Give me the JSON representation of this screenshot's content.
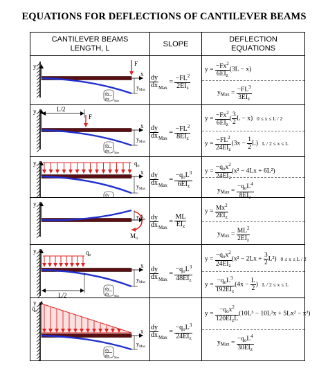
{
  "title": "EQUATIONS FOR DEFLECTIONS OF CANTILEVER BEAMS",
  "headers": {
    "col1_line1": "CANTILEVER BEAMS",
    "col1_line2": "LENGTH, L",
    "col2": "SLOPE",
    "col3_line1": "DEFLECTION",
    "col3_line2": "EQUATIONS"
  },
  "colors": {
    "beam": "#5a0f12",
    "load": "#e02020",
    "deflected": "#1f2fd0"
  },
  "labels": {
    "y": "y",
    "x": "x",
    "F": "F",
    "L2": "L/2",
    "qo": "q",
    "qo_sub": "o",
    "Mo": "M",
    "Mo_sub": "o",
    "ymax": "y",
    "ymax_sub": "Max",
    "dy": "dy",
    "dx": "dx",
    "max_sub": "Max"
  },
  "rows": [
    {
      "slope": {
        "num": "−FL",
        "num_sup": "2",
        "den": "2EI",
        "den_sub": "z"
      },
      "eq1": {
        "lhs": "y =",
        "num": "−Fx",
        "num_sup": "2",
        "den": "6EI",
        "den_sub": "z",
        "rest": "(3L − x)"
      },
      "eq2": {
        "lhs": "y",
        "lhs_sub": "Max",
        "eq": " =",
        "num": "−FL",
        "num_sup": "3",
        "den": "3EI",
        "den_sub": "z"
      }
    },
    {
      "slope": {
        "num": "−FL",
        "num_sup": "2",
        "den": "8EI",
        "den_sub": "z"
      },
      "eq1": {
        "lhs": "y =",
        "num": "−Fx",
        "num_sup": "2",
        "den": "6EI",
        "den_sub": "z",
        "rest_a": "(",
        "inner_num": "3",
        "inner_den": "2",
        "rest_b": "L − x)",
        "cond": "0 ≤ x ≤ L / 2"
      },
      "eq2": {
        "lhs": "y =",
        "num": "−FL",
        "num_sup": "2",
        "den": "24EI",
        "den_sub": "z",
        "rest_a": "(3x − ",
        "inner_num": "1",
        "inner_den": "2",
        "rest_b": "L)",
        "cond": "L / 2 ≤ x ≤ L"
      }
    },
    {
      "slope": {
        "num": "−q",
        "num_sub": "o",
        "num_tail": "L",
        "num_sup": "3",
        "den": "6EI",
        "den_sub": "z"
      },
      "eq1": {
        "lhs": "y =",
        "num": "−q",
        "num_sub": "o",
        "num_tail": "x",
        "num_sup": "2",
        "den": "24EI",
        "den_sub": "z",
        "rest": "(x² − 4Lx + 6L²)"
      },
      "eq2": {
        "lhs": "y",
        "lhs_sub": "Max",
        "eq": " =",
        "num": "−q",
        "num_sub": "o",
        "num_tail": "L",
        "num_sup": "4",
        "den": "8EI",
        "den_sub": "z"
      }
    },
    {
      "slope": {
        "num": "ML",
        "den": "EI",
        "den_sub": "z"
      },
      "eq1": {
        "lhs": "y =",
        "num": "Mx",
        "num_sup": "2",
        "den": "2EI",
        "den_sub": "z"
      },
      "eq2": {
        "lhs": "y",
        "lhs_sub": "Max",
        "eq": " =",
        "num": "ML",
        "num_sup": "2",
        "den": "2EI",
        "den_sub": "z"
      }
    },
    {
      "slope": {
        "num": "−q",
        "num_sub": "o",
        "num_tail": "L",
        "num_sup": "3",
        "den": "48EI",
        "den_sub": "z"
      },
      "eq1": {
        "lhs": "y =",
        "num": "−q",
        "num_sub": "o",
        "num_tail": "x",
        "num_sup": "2",
        "den": "24EI",
        "den_sub": "z",
        "rest": "(x² − 2Lx + ",
        "inner_num": "3",
        "inner_den": "2",
        "rest_b": "L²)",
        "cond": "0 ≤ x ≤ L / 2"
      },
      "eq2": {
        "lhs": "y =",
        "num": "−q",
        "num_sub": "o",
        "num_tail": "L",
        "num_sup": "3",
        "den": "192EI",
        "den_sub": "z",
        "rest_a": "(4x − ",
        "inner_num": "L",
        "inner_den": "2",
        "rest_b": ")",
        "cond": "L / 2 ≤ x ≤ L"
      }
    },
    {
      "slope": {
        "num": "−q",
        "num_sub": "o",
        "num_tail": "L",
        "num_sup": "3",
        "den": "24EI",
        "den_sub": "z"
      },
      "eq1": {
        "lhs": "y =",
        "num": "−q",
        "num_sub": "o",
        "num_tail": "x",
        "num_sup": "2",
        "den": "120EI",
        "den_sub": "z",
        "den_tail": "L",
        "rest": "(10L³ − 10L²x + 5Lx² − x³)"
      },
      "eq2": {
        "lhs": "y",
        "lhs_sub": "Max",
        "eq": " =",
        "num": "−q",
        "num_sub": "o",
        "num_tail": "L",
        "num_sup": "4",
        "den": "30EI",
        "den_sub": "z"
      }
    }
  ]
}
